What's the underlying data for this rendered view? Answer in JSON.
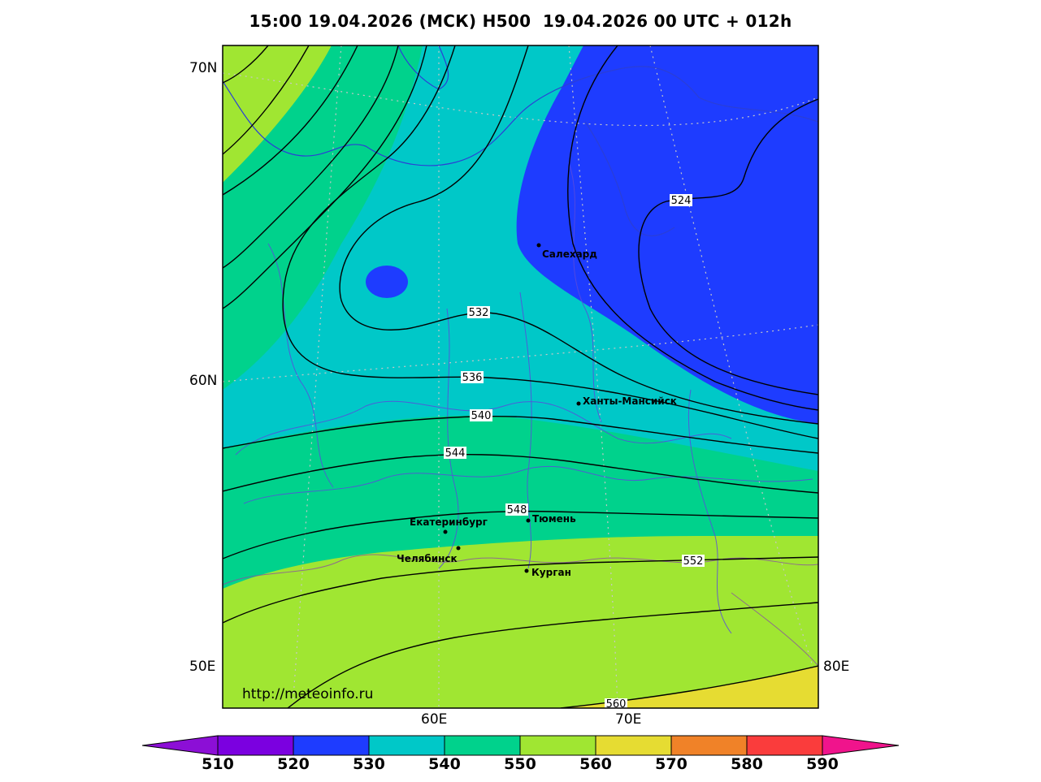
{
  "title": "15:00 19.04.2026 (МСК) H500  19.04.2026 00 UTC + 012h",
  "watermark": "http://meteoinfo.ru",
  "axes": {
    "lat_70": "70N",
    "lat_60": "60N",
    "lon_50": "50E",
    "lon_80": "80E",
    "lon_60": "60E",
    "lon_70": "70E"
  },
  "contour_labels": {
    "c524": "524",
    "c532": "532",
    "c536": "536",
    "c540": "540",
    "c544": "544",
    "c548": "548",
    "c552": "552",
    "c560": "560"
  },
  "cities": {
    "salekhard": "Салехард",
    "khanty": "Ханты-Мансийск",
    "ekb": "Екатеринбург",
    "tyumen": "Тюмень",
    "chelyabinsk": "Челябинск",
    "kurgan": "Курган"
  },
  "colorbar": {
    "ticks": [
      "510",
      "520",
      "530",
      "540",
      "550",
      "560",
      "570",
      "580",
      "590"
    ],
    "colors": [
      "#8c0fd6",
      "#7b00e0",
      "#1e3cff",
      "#00c8c8",
      "#00d28c",
      "#a0e632",
      "#e6dc32",
      "#f08228",
      "#fa3c3c",
      "#f0148c"
    ]
  }
}
